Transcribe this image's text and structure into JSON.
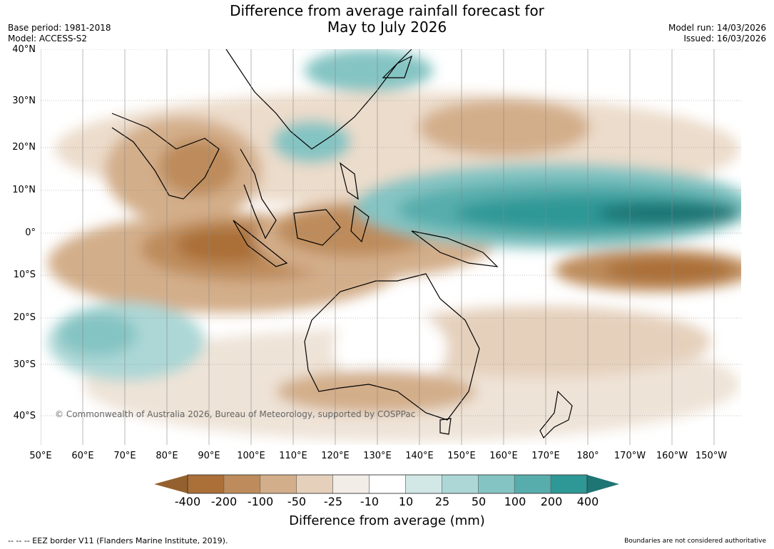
{
  "header": {
    "title_line1": "Difference from average rainfall forecast for",
    "title_line2": "May to July 2026",
    "base_period": "Base period: 1981-2018",
    "model": "Model: ACCESS-S2",
    "model_run": "Model run: 14/03/2026",
    "issued": "Issued: 16/03/2026"
  },
  "map": {
    "lat_labels": [
      "40°N",
      "30°N",
      "20°N",
      "10°N",
      "0°",
      "10°S",
      "20°S",
      "30°S",
      "40°S"
    ],
    "lon_labels": [
      "50°E",
      "60°E",
      "70°E",
      "80°E",
      "90°E",
      "100°E",
      "110°E",
      "120°E",
      "130°E",
      "140°E",
      "150°E",
      "160°E",
      "170°E",
      "180°",
      "170°W",
      "160°W",
      "150°W"
    ],
    "copyright": "© Commonwealth of Australia 2026, Bureau of Meteorology, supported by COSPPac"
  },
  "colorbar": {
    "labels": [
      "-400",
      "-200",
      "-100",
      "-50",
      "-25",
      "-10",
      "10",
      "25",
      "50",
      "100",
      "200",
      "400"
    ],
    "colors": [
      "#ab6f38",
      "#be8c5c",
      "#d3ae8a",
      "#e5d0bc",
      "#f3ede7",
      "#ffffff",
      "#d2e8e7",
      "#acd7d6",
      "#84c4c3",
      "#57adac",
      "#2e9896"
    ],
    "low_end_color": "#94602e",
    "high_end_color": "#1f7573",
    "title": "Difference from average (mm)"
  },
  "footer": {
    "eez": "--  --  -- EEZ border V11 (Flanders Marine Institute, 2019).",
    "disclaimer": "Boundaries are not considered authoritative"
  }
}
